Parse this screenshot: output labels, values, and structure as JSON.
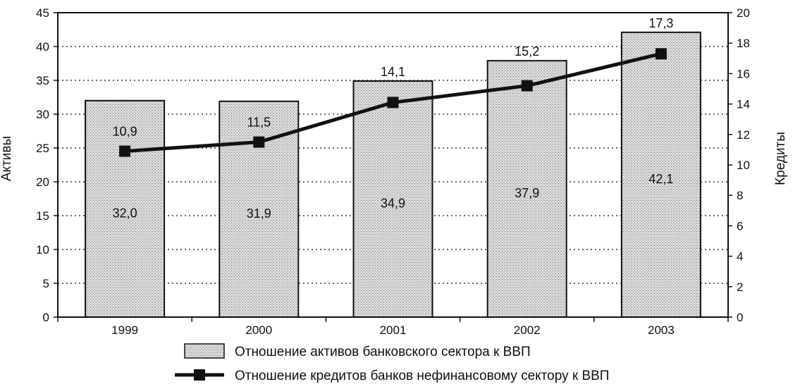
{
  "chart_data": {
    "type": "bar",
    "categories": [
      "1999",
      "2000",
      "2001",
      "2002",
      "2003"
    ],
    "series": [
      {
        "name": "Отношение активов банковского сектора к ВВП",
        "kind": "bar",
        "axis": "left",
        "values": [
          32.0,
          31.9,
          34.9,
          37.9,
          42.1
        ],
        "labels": [
          "32,0",
          "31,9",
          "34,9",
          "37,9",
          "42,1"
        ]
      },
      {
        "name": "Отношение кредитов банков нефинансовому сектору к ВВП",
        "kind": "line",
        "axis": "right",
        "values": [
          10.9,
          11.5,
          14.1,
          15.2,
          17.3
        ],
        "labels": [
          "10,9",
          "11,5",
          "14,1",
          "15,2",
          "17,3"
        ]
      }
    ],
    "ylabel": "Активы",
    "y2label": "Кредиты",
    "ylim": [
      0,
      45
    ],
    "y2lim": [
      0,
      20
    ],
    "yticks": [
      "0",
      "5",
      "10",
      "15",
      "20",
      "25",
      "30",
      "35",
      "40",
      "45"
    ],
    "y2ticks": [
      "0",
      "2",
      "4",
      "6",
      "8",
      "10",
      "12",
      "14",
      "16",
      "18",
      "20"
    ],
    "grid": true,
    "legend_position": "bottom",
    "colors": {
      "line": "#111111",
      "bar_fill": "#d6d6d6",
      "bar_stroke": "#111111"
    }
  }
}
